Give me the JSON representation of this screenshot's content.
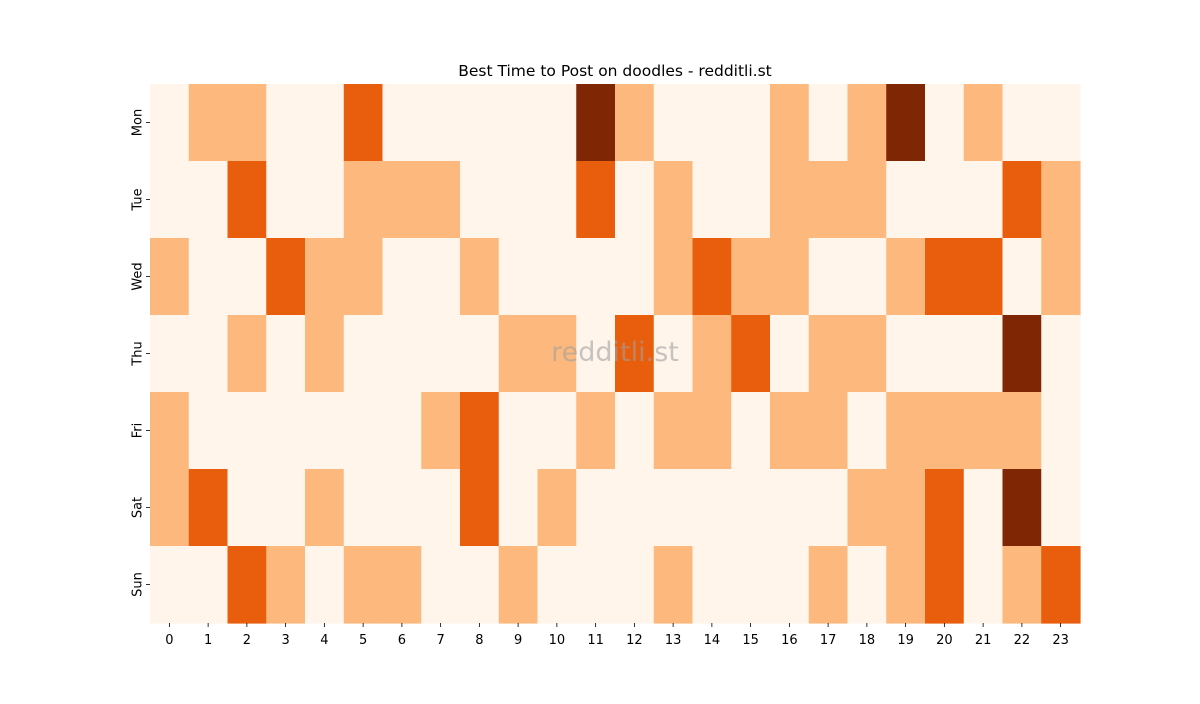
{
  "chart_data": {
    "type": "heatmap",
    "title": "Best Time to Post on doodles - redditli.st",
    "xlabel": "",
    "ylabel": "",
    "x_categories": [
      "0",
      "1",
      "2",
      "3",
      "4",
      "5",
      "6",
      "7",
      "8",
      "9",
      "10",
      "11",
      "12",
      "13",
      "14",
      "15",
      "16",
      "17",
      "18",
      "19",
      "20",
      "21",
      "22",
      "23"
    ],
    "y_categories": [
      "Mon",
      "Tue",
      "Wed",
      "Thu",
      "Fri",
      "Sat",
      "Sun"
    ],
    "values": [
      [
        0,
        1,
        1,
        0,
        0,
        2,
        0,
        0,
        0,
        0,
        0,
        3,
        1,
        0,
        0,
        0,
        1,
        0,
        1,
        3,
        0,
        1,
        0,
        0
      ],
      [
        0,
        0,
        2,
        0,
        0,
        1,
        1,
        1,
        0,
        0,
        0,
        2,
        0,
        1,
        0,
        0,
        1,
        1,
        1,
        0,
        0,
        0,
        2,
        1
      ],
      [
        1,
        0,
        0,
        2,
        1,
        1,
        0,
        0,
        1,
        0,
        0,
        0,
        0,
        1,
        2,
        1,
        1,
        0,
        0,
        1,
        2,
        2,
        0,
        1
      ],
      [
        0,
        0,
        1,
        0,
        1,
        0,
        0,
        0,
        0,
        1,
        1,
        0,
        2,
        0,
        1,
        2,
        0,
        1,
        1,
        0,
        0,
        0,
        3,
        0
      ],
      [
        1,
        0,
        0,
        0,
        0,
        0,
        0,
        1,
        2,
        0,
        0,
        1,
        0,
        1,
        1,
        0,
        1,
        1,
        0,
        1,
        1,
        1,
        1,
        0
      ],
      [
        1,
        2,
        0,
        0,
        1,
        0,
        0,
        0,
        2,
        0,
        1,
        0,
        0,
        0,
        0,
        0,
        0,
        0,
        1,
        1,
        2,
        0,
        3,
        0
      ],
      [
        0,
        0,
        2,
        1,
        0,
        1,
        1,
        0,
        0,
        1,
        0,
        0,
        0,
        1,
        0,
        0,
        0,
        1,
        0,
        1,
        2,
        0,
        1,
        2
      ]
    ],
    "value_range": [
      0,
      3
    ],
    "colormap": [
      "#fff5eb",
      "#fdb97d",
      "#e95e0d",
      "#7f2704"
    ],
    "grid": false,
    "legend": "none",
    "watermark": "redditli.st"
  }
}
